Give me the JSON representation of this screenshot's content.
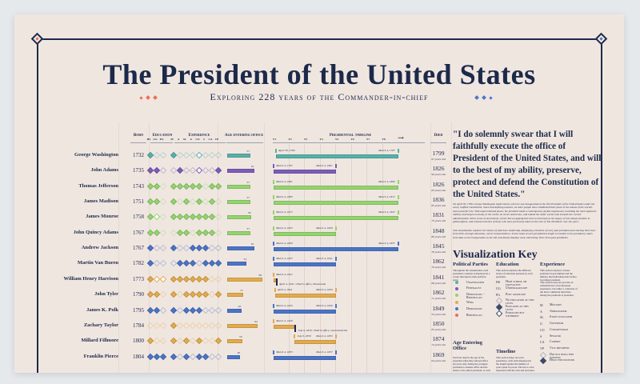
{
  "title": "The President of the United States",
  "subtitle": "Exploring 228 years of the Commander-in-chief",
  "colors": {
    "navy": "#1c2a4a",
    "unaffiliated": "#56b0a8",
    "federalist": "#7c5cb8",
    "democratic_republican": "#93d46e",
    "whig": "#e2ab4c",
    "democratic": "#4a74c6",
    "republican": "#ef6b55"
  },
  "headers": {
    "born": "Born",
    "education": "Education",
    "education_sub": [
      "HS",
      "UG",
      "PG"
    ],
    "experience": "Experience",
    "experience_sub": [
      "M",
      "A",
      "SL",
      "G",
      "CO",
      "S",
      "CA",
      "VP"
    ],
    "age": "Age entering office",
    "timeline": "Presidential timeline",
    "timeline_sub": [
      "Y1",
      "Y2",
      "Y3",
      "Y4",
      "Y5",
      "Y6",
      "Y7",
      "Y8"
    ],
    "died": "Died"
  },
  "presidents": [
    {
      "name": "George Washington",
      "born": "1732",
      "party": "unaffiliated",
      "education": [
        2,
        0,
        0
      ],
      "experience": [
        2,
        0,
        0,
        0,
        1,
        0,
        0,
        0
      ],
      "age": 57,
      "start": "April 30, 1789",
      "end": "March 4, 1797",
      "died": "1799",
      "died_age": "67 years old"
    },
    {
      "name": "John Adams",
      "born": "1735",
      "party": "federalist",
      "education": [
        2,
        2,
        0
      ],
      "experience": [
        0,
        2,
        0,
        0,
        1,
        0,
        0,
        2
      ],
      "age": 61,
      "start": "March 4, 1797",
      "end": "March 4, 1801",
      "died": "1826",
      "died_age": "90 years old"
    },
    {
      "name": "Thomas Jefferson",
      "born": "1743",
      "party": "democratic_republican",
      "education": [
        2,
        2,
        0
      ],
      "experience": [
        2,
        2,
        2,
        2,
        2,
        0,
        2,
        2
      ],
      "age": 57,
      "start": "March 4, 1801",
      "end": "March 4, 1809",
      "died": "1826",
      "died_age": "83 years old"
    },
    {
      "name": "James Madison",
      "born": "1751",
      "party": "democratic_republican",
      "education": [
        2,
        2,
        0
      ],
      "experience": [
        2,
        0,
        2,
        0,
        2,
        0,
        2,
        0
      ],
      "age": 57,
      "start": "March 4, 1809",
      "end": "March 4, 1817",
      "died": "1836",
      "died_age": "85 years old"
    },
    {
      "name": "James Monroe",
      "born": "1758",
      "party": "democratic_republican",
      "education": [
        2,
        1,
        0
      ],
      "experience": [
        2,
        2,
        2,
        2,
        2,
        2,
        2,
        0
      ],
      "age": 58,
      "start": "March 4, 1817",
      "end": "March 4, 1825",
      "died": "1831",
      "died_age": "73 years old"
    },
    {
      "name": "John Quincy Adams",
      "born": "1767",
      "party": "democratic_republican",
      "education": [
        2,
        2,
        0
      ],
      "experience": [
        0,
        2,
        2,
        0,
        2,
        2,
        2,
        0
      ],
      "age": 57,
      "start": "March 4, 1825",
      "end": "March 4, 1829",
      "died": "1848",
      "died_age": "80 years old"
    },
    {
      "name": "Andrew Jackson",
      "born": "1767",
      "party": "democratic",
      "education": [
        2,
        0,
        0
      ],
      "experience": [
        2,
        0,
        0,
        2,
        2,
        2,
        0,
        0
      ],
      "age": 61,
      "start": "March 4, 1829",
      "end": "March 4, 1837",
      "died": "1845",
      "died_age": "78 years old"
    },
    {
      "name": "Martin Van Buren",
      "born": "1782",
      "party": "democratic",
      "education": [
        2,
        0,
        0
      ],
      "experience": [
        0,
        2,
        2,
        2,
        0,
        2,
        2,
        2
      ],
      "age": 54,
      "start": "March 4, 1837",
      "end": "March 4, 1841",
      "died": "1862",
      "died_age": "79 years old"
    },
    {
      "name": "William Henry Harrison",
      "born": "1773",
      "party": "whig",
      "education": [
        2,
        1,
        1
      ],
      "experience": [
        2,
        2,
        2,
        2,
        2,
        2,
        0,
        0
      ],
      "age": 68,
      "start": "March 4, 1841",
      "end": "April 4, 1841",
      "death_note": "April 4, 1841 / Died in office, Pneumonia",
      "died": "1841",
      "died_age": "68 years old"
    },
    {
      "name": "John Tyler",
      "born": "1790",
      "party": "whig",
      "education": [
        2,
        2,
        0
      ],
      "experience": [
        2,
        0,
        2,
        2,
        2,
        2,
        0,
        2
      ],
      "age": 51,
      "start": "April 4, 1841",
      "end": "March 4, 1845",
      "died": "1862",
      "died_age": "71 years old"
    },
    {
      "name": "James K. Polk",
      "born": "1795",
      "party": "democratic",
      "education": [
        2,
        2,
        0
      ],
      "experience": [
        2,
        0,
        2,
        2,
        2,
        0,
        0,
        0
      ],
      "age": 49,
      "start": "March 4, 1845",
      "end": "March 4, 1849",
      "died": "1849",
      "died_age": "53 years old"
    },
    {
      "name": "Zachary Taylor",
      "born": "1784",
      "party": "whig",
      "education": [
        0,
        0,
        0
      ],
      "experience": [
        2,
        0,
        0,
        0,
        0,
        0,
        0,
        0
      ],
      "age": 64,
      "start": "March 4, 1849",
      "end": "July 9, 1850",
      "death_note": "July 9, 1850 / Died in office, Gastroenteritis",
      "died": "1850",
      "died_age": "65 years old"
    },
    {
      "name": "Millard Fillmore",
      "born": "1800",
      "party": "whig",
      "education": [
        2,
        0,
        0
      ],
      "experience": [
        2,
        0,
        2,
        0,
        2,
        0,
        0,
        2
      ],
      "age": 50,
      "start": "July 9, 1850",
      "end": "March 4, 1853",
      "died": "1874",
      "died_age": "74 years old"
    },
    {
      "name": "Franklin Pierce",
      "born": "1804",
      "party": "democratic",
      "education": [
        2,
        2,
        2
      ],
      "experience": [
        2,
        0,
        2,
        0,
        2,
        2,
        0,
        0
      ],
      "age": 48,
      "start": "March 4, 1853",
      "end": "March 4, 1857",
      "died": "1869",
      "died_age": "64 years old"
    }
  ],
  "quote": "\"I do solemnly swear that I will faithfully execute the office of President of the United States, and will to the best of my ability, preserve, protect and defend the Constitution of the United States.\"",
  "intro_1": "On April 30, 1789, George Washington made history when he was inaugurated as the first President of the United States under the newly ratified Constitution. Since that defining moment, 44 other people have established their place in the annals of the world's most powerful role. With unprecedented power, the president leads a contemporary global superpower, including the most expensive military and largest economy in the world. As recent Americans, and indeed the wider world, look towards the current administration with a sense of uncertainty, it feels like an appropriate time to look back at the legacy of this unique position in global affairs, and remind ourselves of those who have previously taken on the role of 'Mr. President' over the years.",
  "intro_2": "This visualization explores the history of American leadership, displaying a timeline of every past president and charting their lives from birth, through education, career and presidency. It also looks at each presidential length in relation to the presidency, taken from data on the inauguration as the left, and finally displays some interesting 'firsts' from past presidents.",
  "key": {
    "title": "Visualization Key",
    "parties": {
      "title": "Political Parties",
      "desc": "Throughout the visualization, each president's contents is displayed in a colour that depicts their political party.",
      "items": [
        {
          "label": "Unaffiliated",
          "key": "unaffiliated"
        },
        {
          "label": "Federalist",
          "key": "federalist"
        },
        {
          "label": "Democratic -Republican",
          "key": "democratic_republican"
        },
        {
          "label": "Whig",
          "key": "whig"
        },
        {
          "label": "Democratic",
          "key": "democratic"
        },
        {
          "label": "Republican",
          "key": "republican"
        }
      ]
    },
    "age": {
      "title": "Age Entering Office",
      "desc": "Each bar depicts the age of the president when they entered office (in years old), listing the youngest president to assume office and the eldest to the oldest president, as well as each president's age while their time in office."
    },
    "education": {
      "title": "Education",
      "desc": "This section explores the different levels of education pursued by each president.",
      "items": [
        {
          "abbr": "HS",
          "label": "High school or equivalent"
        },
        {
          "abbr": "UG",
          "label": "Undergraduate"
        },
        {
          "abbr": "PG",
          "label": "Post graduate"
        },
        {
          "abbr": "",
          "label": "No education at this level"
        },
        {
          "abbr": "",
          "label": "Educated at this level"
        },
        {
          "abbr": "",
          "label": "Enrolled but withdrew"
        }
      ]
    },
    "timeline": {
      "title": "Timeline",
      "desc": "This section maps out each presidency, each term displayed in the length against the number of years spent in power. The bar is color annotated with the start and end dates of the presidency. Terms ending in death or resignation are marked with a black bar."
    },
    "experience": {
      "title": "Experience",
      "desc": "This section explores various positions in government and the military that individuals held before becoming president.",
      "desc2": "This section does not provide an exhaustive list of professional experience, but rather a collection of the most commonly held titles among the positions of president.",
      "items": [
        {
          "abbr": "M",
          "label": "Military"
        },
        {
          "abbr": "A",
          "label": "Ambassador"
        },
        {
          "abbr": "SL",
          "label": "State legislator"
        },
        {
          "abbr": "G",
          "label": "Governor"
        },
        {
          "abbr": "CO",
          "label": "Congressman"
        },
        {
          "abbr": "S",
          "label": "Senator"
        },
        {
          "abbr": "CA",
          "label": "Cabinet"
        },
        {
          "abbr": "VP",
          "label": "Vice president"
        },
        {
          "abbr": "",
          "label": "Did not hold this position"
        },
        {
          "abbr": "",
          "label": "Held this position"
        }
      ]
    }
  }
}
